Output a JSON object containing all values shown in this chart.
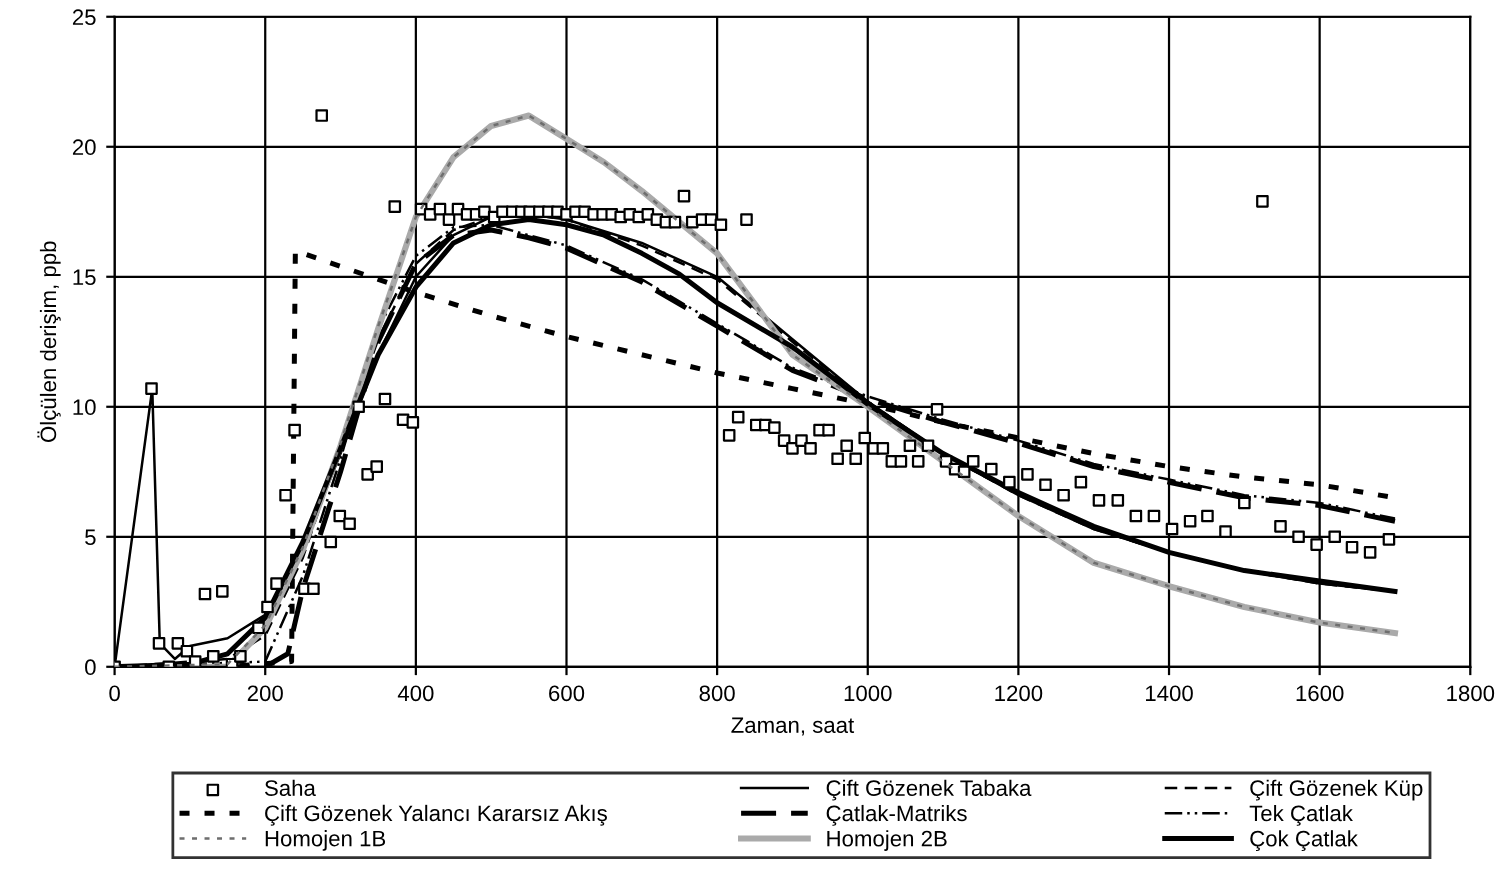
{
  "chart_data": {
    "type": "line",
    "xlabel": "Zaman, saat",
    "ylabel": "Ölçülen derişim, ppb",
    "xlim": [
      0,
      1800
    ],
    "ylim": [
      0,
      25
    ],
    "xticks": [
      0,
      200,
      400,
      600,
      800,
      1000,
      1200,
      1400,
      1600,
      1800
    ],
    "yticks": [
      0,
      5,
      10,
      15,
      20,
      25
    ],
    "grid": true,
    "legend": "bottom",
    "series": [
      {
        "name": "Saha",
        "type": "scatter",
        "marker": "square",
        "color": "#000000",
        "x": [
          0,
          49,
          59,
          72,
          84,
          96,
          107,
          120,
          131,
          143,
          156,
          167,
          191,
          203,
          215,
          227,
          239,
          252,
          264,
          275,
          287,
          299,
          312,
          324,
          336,
          348,
          359,
          372,
          383,
          396,
          407,
          419,
          432,
          444,
          456,
          468,
          480,
          491,
          504,
          515,
          528,
          540,
          551,
          564,
          576,
          588,
          600,
          612,
          624,
          636,
          648,
          660,
          672,
          684,
          696,
          708,
          720,
          732,
          744,
          756,
          767,
          780,
          792,
          805,
          816,
          828,
          839,
          852,
          864,
          876,
          889,
          900,
          912,
          924,
          936,
          948,
          960,
          972,
          984,
          996,
          1008,
          1020,
          1032,
          1044,
          1056,
          1067,
          1080,
          1092,
          1104,
          1116,
          1128,
          1140,
          1164,
          1188,
          1212,
          1236,
          1260,
          1283,
          1307,
          1332,
          1356,
          1380,
          1404,
          1428,
          1451,
          1475,
          1500,
          1524,
          1548,
          1572,
          1596,
          1620,
          1643,
          1667,
          1692
        ],
        "values": [
          0,
          10.7,
          0.9,
          0,
          0.9,
          0.6,
          0.2,
          2.8,
          0.4,
          2.9,
          0.1,
          0.4,
          1.5,
          2.3,
          3.2,
          6.6,
          9.1,
          3.0,
          3.0,
          21.2,
          4.8,
          5.8,
          5.5,
          10,
          7.4,
          7.7,
          10.3,
          17.7,
          9.5,
          9.4,
          17.6,
          17.4,
          17.6,
          17.2,
          17.6,
          17.4,
          17.4,
          17.5,
          17.3,
          17.5,
          17.5,
          17.5,
          17.5,
          17.5,
          17.5,
          17.5,
          17.4,
          17.5,
          17.5,
          17.4,
          17.4,
          17.4,
          17.3,
          17.4,
          17.3,
          17.4,
          17.2,
          17.1,
          17.1,
          18.1,
          17.1,
          17.2,
          17.2,
          17.0,
          8.9,
          9.6,
          17.2,
          9.3,
          9.3,
          9.2,
          8.7,
          8.4,
          8.7,
          8.4,
          9.1,
          9.1,
          8.0,
          8.5,
          8.0,
          8.8,
          8.4,
          8.4,
          7.9,
          7.9,
          8.5,
          7.9,
          8.5,
          9.9,
          7.9,
          7.6,
          7.5,
          7.9,
          7.6,
          7.1,
          7.4,
          7.0,
          6.6,
          7.1,
          6.4,
          6.4,
          5.8,
          5.8,
          5.3,
          5.6,
          5.8,
          5.2,
          6.3,
          17.9,
          5.4,
          5.0,
          4.7,
          5.0,
          4.6,
          4.4,
          4.9
        ]
      },
      {
        "name": "Çift Gözenek Tabaka",
        "line_style": "solid",
        "color": "#000000",
        "x": [
          0,
          50,
          60,
          80,
          100,
          150,
          200,
          250,
          300,
          350,
          400,
          450,
          500,
          550,
          600,
          700,
          800,
          900,
          1000,
          1100,
          1200,
          1300,
          1400,
          1500,
          1600,
          1700
        ],
        "values": [
          0,
          10.7,
          0.9,
          0.3,
          0.8,
          1.1,
          2.0,
          4.6,
          8.2,
          12,
          15,
          16.6,
          17.3,
          17.4,
          17.2,
          16.3,
          15,
          12.6,
          10.2,
          8.2,
          6.6,
          5.3,
          4.4,
          3.7,
          3.2,
          2.9
        ]
      },
      {
        "name": "Çift Gözenek Küp",
        "line_style": "dashed",
        "color": "#000000",
        "x": [
          0,
          150,
          200,
          250,
          300,
          350,
          400,
          450,
          500,
          550,
          600,
          700,
          800,
          900,
          1000,
          1100,
          1200,
          1300,
          1400,
          1500,
          1600,
          1700
        ],
        "values": [
          0,
          0.3,
          1.2,
          4.2,
          8.5,
          12.6,
          15.5,
          16.8,
          17.3,
          17.4,
          17.2,
          16.2,
          14.9,
          12.5,
          10.2,
          8.2,
          6.6,
          5.3,
          4.4,
          3.7,
          3.2,
          2.9
        ]
      },
      {
        "name": "Çift Gözenek Yalancı Kararsız Akış",
        "line_style": "dotted",
        "color": "#000000",
        "x": [
          0,
          150,
          235,
          240,
          250,
          300,
          400,
          500,
          600,
          700,
          800,
          900,
          1000,
          1100,
          1200,
          1300,
          1400,
          1500,
          1600,
          1700
        ],
        "values": [
          0,
          0,
          0.2,
          16,
          15.9,
          15.4,
          14.4,
          13.5,
          12.7,
          12.0,
          11.3,
          10.7,
          10.1,
          9.4,
          8.8,
          8.2,
          7.7,
          7.3,
          7.0,
          6.5
        ]
      },
      {
        "name": "Çatlak-Matriks",
        "line_style": "longdash",
        "color": "#000000",
        "x": [
          0,
          200,
          230,
          250,
          300,
          350,
          400,
          450,
          500,
          550,
          600,
          700,
          800,
          900,
          1000,
          1100,
          1200,
          1300,
          1400,
          1500,
          1600,
          1700
        ],
        "values": [
          0,
          0,
          0.5,
          3,
          7.5,
          12.5,
          15.5,
          16.6,
          16.8,
          16.5,
          16.1,
          14.8,
          13.1,
          11.4,
          10.3,
          9.4,
          8.6,
          7.7,
          7.1,
          6.5,
          6.2,
          5.6
        ]
      },
      {
        "name": "Tek Çatlak",
        "line_style": "dashdotdot",
        "color": "#000000",
        "x": [
          0,
          200,
          250,
          300,
          350,
          400,
          450,
          500,
          550,
          600,
          700,
          800,
          900,
          1000,
          1100,
          1200,
          1300,
          1400,
          1500,
          1600,
          1700
        ],
        "values": [
          0,
          0.2,
          3.5,
          8,
          13,
          15.8,
          16.9,
          17.0,
          16.6,
          16.2,
          14.9,
          13.2,
          11.5,
          10.4,
          9.5,
          8.7,
          7.8,
          7.2,
          6.6,
          6.3,
          5.7
        ]
      },
      {
        "name": "Homojen 1B",
        "line_style": "dotted",
        "color": "#6e6e6e",
        "x": [
          0,
          150,
          200,
          250,
          300,
          350,
          400,
          450,
          500,
          550,
          600,
          650,
          700,
          750,
          800,
          900,
          1000,
          1100,
          1200,
          1300,
          1400,
          1500,
          1600,
          1700
        ],
        "values": [
          0,
          0.1,
          1.6,
          4.6,
          8.6,
          13.1,
          17.3,
          19.6,
          20.8,
          21.2,
          20.3,
          19.4,
          18.3,
          17.1,
          15.9,
          12,
          10,
          7.9,
          5.8,
          4.0,
          3.1,
          2.3,
          1.7,
          1.3
        ]
      },
      {
        "name": "Homojen 2B",
        "line_style": "solid",
        "color": "#aaaaaa",
        "x": [
          0,
          150,
          200,
          250,
          300,
          350,
          400,
          450,
          500,
          550,
          600,
          650,
          700,
          750,
          800,
          900,
          1000,
          1100,
          1200,
          1300,
          1400,
          1500,
          1600,
          1700
        ],
        "values": [
          0,
          0,
          1.5,
          4.5,
          8.5,
          13,
          17.3,
          19.6,
          20.8,
          21.2,
          20.3,
          19.4,
          18.3,
          17.1,
          15.9,
          12,
          10,
          7.9,
          5.8,
          4.0,
          3.1,
          2.3,
          1.7,
          1.3
        ]
      },
      {
        "name": "Çok Çatlak",
        "line_style": "solid",
        "color": "#000000",
        "x": [
          0,
          100,
          150,
          200,
          250,
          300,
          350,
          400,
          450,
          500,
          550,
          600,
          650,
          700,
          750,
          800,
          900,
          1000,
          1100,
          1200,
          1300,
          1400,
          1500,
          1600,
          1700
        ],
        "values": [
          0,
          0.1,
          0.5,
          1.9,
          4.8,
          8.4,
          12,
          14.6,
          16.3,
          17.0,
          17.2,
          17.0,
          16.6,
          15.9,
          15.1,
          14.0,
          12.3,
          10.1,
          8.2,
          6.7,
          5.4,
          4.4,
          3.7,
          3.3,
          2.9
        ]
      }
    ]
  }
}
